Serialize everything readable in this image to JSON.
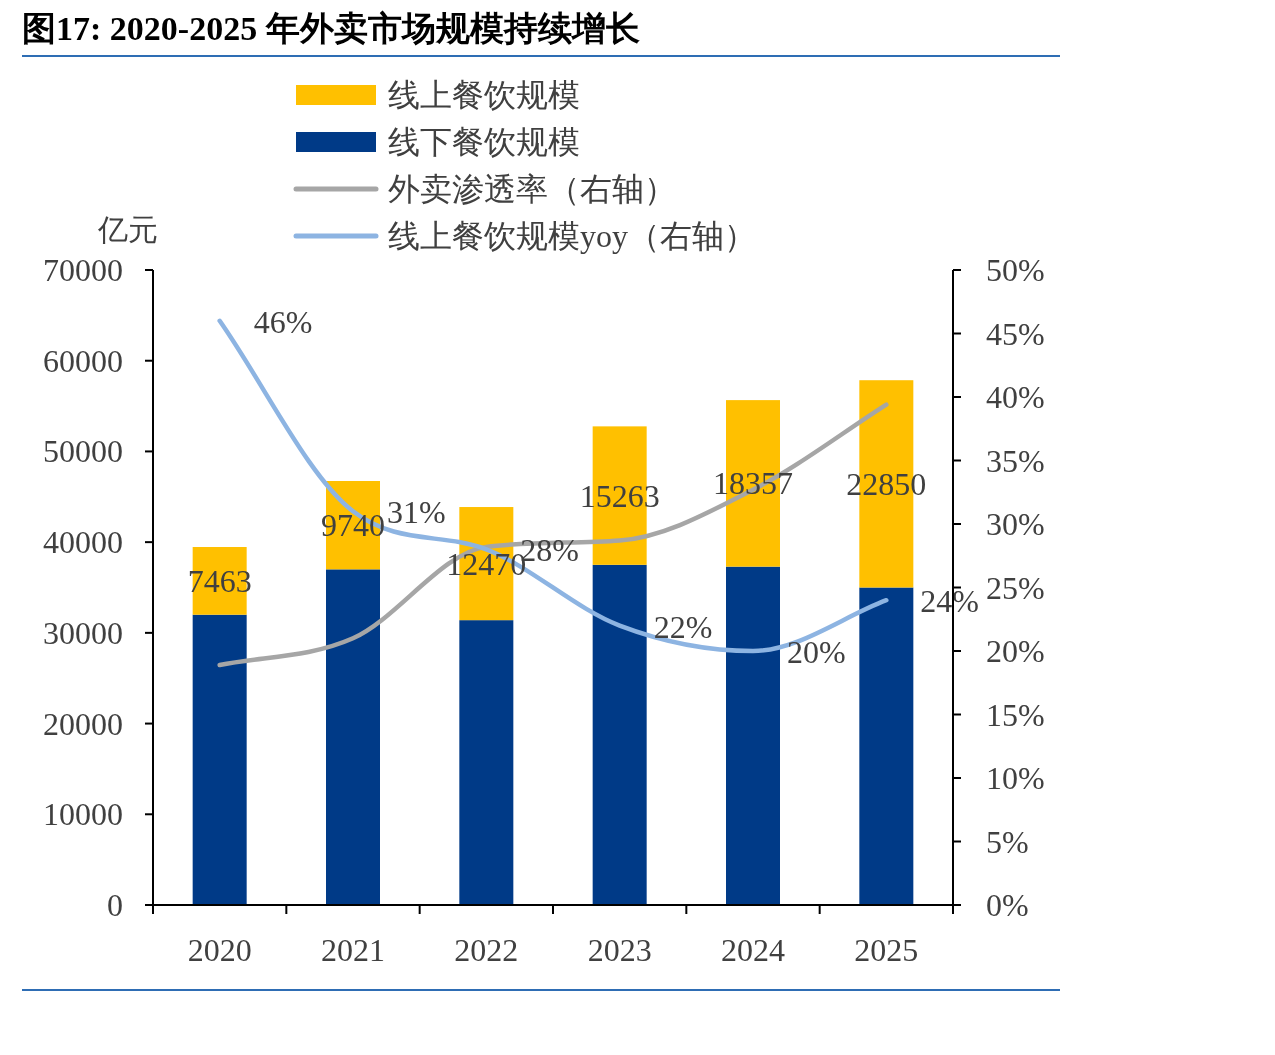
{
  "chart_data": {
    "type": "bar",
    "title": "图17: 2020-2025 年外卖市场规模持续增长",
    "ylabel": "亿元",
    "categories": [
      "2020",
      "2021",
      "2022",
      "2023",
      "2024",
      "2025"
    ],
    "stacked": true,
    "ylim": [
      0,
      70000
    ],
    "yticks": [
      0,
      10000,
      20000,
      30000,
      40000,
      50000,
      60000,
      70000
    ],
    "y2lim": [
      0,
      50
    ],
    "y2ticks": [
      {
        "value": 0,
        "label": "0%"
      },
      {
        "value": 5,
        "label": "5%"
      },
      {
        "value": 10,
        "label": "10%"
      },
      {
        "value": 15,
        "label": "15%"
      },
      {
        "value": 20,
        "label": "20%"
      },
      {
        "value": 25,
        "label": "25%"
      },
      {
        "value": 30,
        "label": "30%"
      },
      {
        "value": 35,
        "label": "35%"
      },
      {
        "value": 40,
        "label": "40%"
      },
      {
        "value": 45,
        "label": "45%"
      },
      {
        "value": 50,
        "label": "50%"
      }
    ],
    "legend": "top",
    "series": [
      {
        "name": "线下餐饮规模",
        "color": "#003a87",
        "values": [
          32000,
          37000,
          31400,
          37500,
          37300,
          35000
        ]
      },
      {
        "name": "线上餐饮规模",
        "color": "#ffc000",
        "values": [
          7463,
          9740,
          12470,
          15263,
          18357,
          22850
        ],
        "value_labels": [
          "7463",
          "9740",
          "12470",
          "15263",
          "18357",
          "22850"
        ]
      },
      {
        "name": "外卖渗透率（右轴）",
        "type": "line",
        "axis": "y2",
        "color": "#a6a6a6",
        "values": [
          18.9,
          21.0,
          28.2,
          28.7,
          32.7,
          39.4
        ]
      },
      {
        "name": "线上餐饮规模yoy（右轴）",
        "type": "line",
        "axis": "y2",
        "color": "#8db4e2",
        "values": [
          46,
          31,
          28,
          22,
          20,
          24
        ],
        "value_labels": [
          "46%",
          "31%",
          "28%",
          "22%",
          "20%",
          "24%"
        ]
      }
    ]
  }
}
